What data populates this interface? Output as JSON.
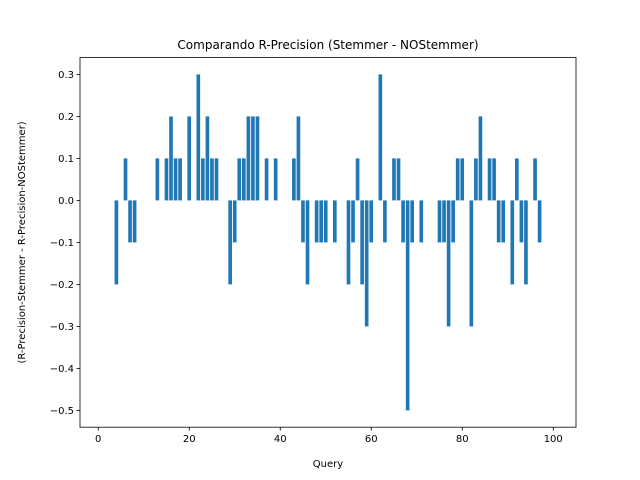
{
  "chart_data": {
    "type": "bar",
    "title": "Comparando R-Precision (Stemmer - NOStemmer)",
    "xlabel": "Query",
    "ylabel": "(R-Precision-Stemmer - R-Precision-NOStemmer)",
    "xlim": [
      -4,
      105
    ],
    "ylim": [
      -0.54,
      0.34
    ],
    "xticks": [
      0,
      20,
      40,
      60,
      80,
      100
    ],
    "yticks": [
      0.3,
      0.2,
      0.1,
      0.0,
      -0.1,
      -0.2,
      -0.3,
      -0.4,
      -0.5
    ],
    "ytick_labels": [
      "0.3",
      "0.2",
      "0.1",
      "0.0",
      "−0.1",
      "−0.2",
      "−0.3",
      "−0.4",
      "−0.5"
    ],
    "grid": false,
    "bar_color": "#1f77b4",
    "x": [
      4,
      6,
      7,
      8,
      13,
      15,
      16,
      17,
      18,
      20,
      22,
      23,
      24,
      25,
      26,
      29,
      30,
      31,
      32,
      33,
      34,
      35,
      37,
      39,
      43,
      44,
      45,
      46,
      48,
      49,
      50,
      52,
      55,
      56,
      57,
      58,
      59,
      60,
      62,
      63,
      65,
      66,
      67,
      68,
      69,
      71,
      75,
      76,
      77,
      78,
      79,
      80,
      82,
      83,
      84,
      86,
      87,
      88,
      89,
      91,
      92,
      93,
      94,
      96,
      97
    ],
    "values": [
      -0.2,
      0.1,
      -0.1,
      -0.1,
      0.1,
      0.1,
      0.2,
      0.1,
      0.1,
      0.2,
      0.3,
      0.1,
      0.2,
      0.1,
      0.1,
      -0.2,
      -0.1,
      0.1,
      0.1,
      0.2,
      0.2,
      0.2,
      0.1,
      0.1,
      0.1,
      0.2,
      -0.1,
      -0.2,
      -0.1,
      -0.1,
      -0.1,
      -0.1,
      -0.2,
      -0.1,
      0.1,
      -0.2,
      -0.3,
      -0.1,
      0.3,
      -0.1,
      0.1,
      0.1,
      -0.1,
      -0.5,
      -0.1,
      -0.1,
      -0.1,
      -0.1,
      -0.3,
      -0.1,
      0.1,
      0.1,
      -0.3,
      0.1,
      0.2,
      0.1,
      0.1,
      -0.1,
      -0.1,
      -0.2,
      0.1,
      -0.1,
      -0.2,
      0.1,
      -0.1
    ]
  }
}
